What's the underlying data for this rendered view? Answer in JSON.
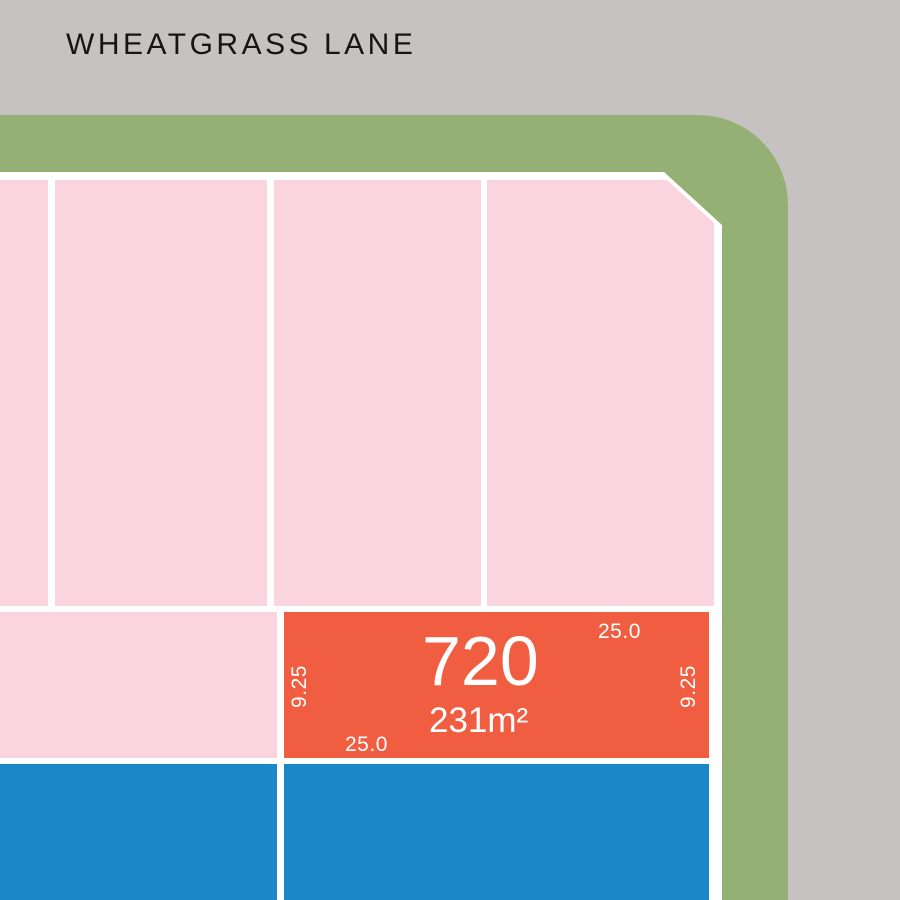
{
  "map": {
    "road_name": "WHEATGRASS LANE",
    "colors": {
      "road": "#c7c2c2",
      "verge": "#95b074",
      "available_lot": "#fad4de",
      "highlighted_lot": "#f05d40",
      "adjacent_lot": "#1a87c8",
      "boundary": "#ffffff"
    },
    "highlighted_lot": {
      "number": "720",
      "area": "231m²",
      "dimensions": {
        "frontage_top": "25.0",
        "frontage_bottom": "25.0",
        "depth_left": "9.25",
        "depth_right": "9.25"
      }
    }
  }
}
